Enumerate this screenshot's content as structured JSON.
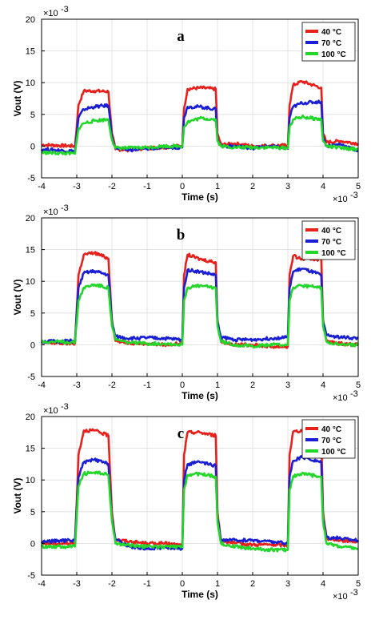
{
  "chart_data": [
    {
      "type": "line",
      "panel_label": "a",
      "xlabel": "Time (s)",
      "ylabel": "Vout (V)",
      "xlim": [
        -4,
        5
      ],
      "ylim": [
        -5,
        20
      ],
      "x_ticks": [
        "-4",
        "-3",
        "-2",
        "-1",
        "0",
        "1",
        "2",
        "3",
        "4",
        "5"
      ],
      "y_ticks": [
        "-5",
        "0",
        "5",
        "10",
        "15",
        "20"
      ],
      "x_multiplier": "×10",
      "x_multiplier_exp": "-3",
      "y_multiplier": "×10",
      "y_multiplier_exp": "-3",
      "grid": true,
      "legend_position": "top-right",
      "series": [
        {
          "name": "40 °C",
          "color": "#e8201c",
          "x": [
            -4,
            -3.05,
            -2.95,
            -2.8,
            -2.5,
            -2.1,
            -2.0,
            -1.9,
            -1.5,
            -1,
            -0.5,
            0,
            0.05,
            0.15,
            0.5,
            0.95,
            1.0,
            1.1,
            1.5,
            2,
            2.5,
            3.0,
            3.05,
            3.15,
            3.4,
            3.95,
            4.0,
            4.1,
            4.5,
            5
          ],
          "values": [
            0.2,
            0.0,
            6.5,
            8.7,
            8.7,
            8.6,
            2.0,
            -0.5,
            -0.6,
            -0.3,
            -0.2,
            0.1,
            6.0,
            9.0,
            9.2,
            9.0,
            2.0,
            0.2,
            0.4,
            0.0,
            0.1,
            0.1,
            6.5,
            9.6,
            10.2,
            9.2,
            2.0,
            0.6,
            0.8,
            0.4
          ]
        },
        {
          "name": "70 °C",
          "color": "#1a1fd6",
          "x": [
            -4,
            -3.05,
            -2.95,
            -2.8,
            -2.5,
            -2.1,
            -2.0,
            -1.9,
            -1.5,
            -1,
            -0.5,
            0,
            0.05,
            0.15,
            0.5,
            0.95,
            1.0,
            1.1,
            1.5,
            2,
            2.5,
            3.0,
            3.05,
            3.15,
            3.4,
            3.95,
            4.0,
            4.1,
            4.5,
            5
          ],
          "values": [
            -0.5,
            -0.8,
            4.5,
            5.8,
            6.2,
            6.4,
            1.5,
            -0.3,
            -0.6,
            -0.4,
            -0.2,
            -0.2,
            4.5,
            6.2,
            6.2,
            5.8,
            1.2,
            0.0,
            0.0,
            -0.3,
            0.0,
            -0.4,
            4.5,
            6.2,
            6.8,
            7.0,
            1.5,
            0.0,
            0.3,
            -0.8
          ]
        },
        {
          "name": "100 °C",
          "color": "#22d62a",
          "x": [
            -4,
            -3.05,
            -2.95,
            -2.8,
            -2.5,
            -2.1,
            -2.0,
            -1.9,
            -1.5,
            -1,
            -0.5,
            0,
            0.05,
            0.15,
            0.5,
            0.95,
            1.0,
            1.1,
            1.5,
            2,
            2.5,
            3.0,
            3.05,
            3.15,
            3.4,
            3.95,
            4.0,
            4.1,
            4.5,
            5
          ],
          "values": [
            -1.0,
            -1.2,
            2.8,
            3.6,
            4.0,
            4.2,
            1.0,
            -0.3,
            -0.3,
            -0.2,
            0.0,
            0.0,
            3.0,
            3.8,
            4.4,
            4.2,
            0.8,
            0.0,
            -0.2,
            -0.2,
            -0.2,
            -0.3,
            3.0,
            4.2,
            4.6,
            4.2,
            0.8,
            0.0,
            -0.3,
            -0.5
          ]
        }
      ]
    },
    {
      "type": "line",
      "panel_label": "b",
      "xlabel": "Time (s)",
      "ylabel": "Vout (V)",
      "xlim": [
        -4,
        5
      ],
      "ylim": [
        -5,
        20
      ],
      "x_ticks": [
        "-4",
        "-3",
        "-2",
        "-1",
        "0",
        "1",
        "2",
        "3",
        "4",
        "5"
      ],
      "y_ticks": [
        "-5",
        "0",
        "5",
        "10",
        "15",
        "20"
      ],
      "x_multiplier": "×10",
      "x_multiplier_exp": "-3",
      "y_multiplier": "×10",
      "y_multiplier_exp": "-3",
      "grid": true,
      "legend_position": "top-right",
      "series": [
        {
          "name": "40 °C",
          "color": "#e8201c",
          "x": [
            -4,
            -3.05,
            -2.95,
            -2.8,
            -2.5,
            -2.1,
            -2.0,
            -1.9,
            -1.5,
            -1,
            -0.5,
            0,
            0.05,
            0.15,
            0.5,
            0.95,
            1.0,
            1.1,
            1.5,
            2,
            2.5,
            3.0,
            3.05,
            3.15,
            3.4,
            3.95,
            4.0,
            4.1,
            4.5,
            5
          ],
          "values": [
            0.3,
            0.2,
            11.0,
            14.2,
            14.5,
            13.6,
            4.0,
            0.6,
            0.3,
            0.2,
            0.0,
            0.2,
            11.0,
            14.2,
            13.5,
            13.0,
            4.0,
            0.5,
            0.0,
            0.0,
            -0.3,
            -0.3,
            11.0,
            14.0,
            13.5,
            13.5,
            4.0,
            0.5,
            0.2,
            0.0
          ]
        },
        {
          "name": "70 °C",
          "color": "#1a1fd6",
          "x": [
            -4,
            -3.05,
            -2.95,
            -2.8,
            -2.5,
            -2.1,
            -2.0,
            -1.9,
            -1.5,
            -1,
            -0.5,
            0,
            0.05,
            0.15,
            0.5,
            0.95,
            1.0,
            1.1,
            1.5,
            2,
            2.5,
            3.0,
            3.05,
            3.15,
            3.4,
            3.95,
            4.0,
            4.1,
            4.5,
            5
          ],
          "values": [
            0.5,
            0.6,
            9.0,
            11.3,
            11.6,
            11.0,
            3.5,
            1.3,
            1.0,
            1.1,
            1.0,
            0.8,
            9.0,
            11.8,
            11.5,
            11.0,
            3.5,
            1.2,
            0.8,
            0.8,
            1.0,
            1.2,
            9.0,
            11.5,
            12.0,
            11.0,
            3.5,
            1.5,
            1.2,
            1.0
          ]
        },
        {
          "name": "100 °C",
          "color": "#22d62a",
          "x": [
            -4,
            -3.05,
            -2.95,
            -2.8,
            -2.5,
            -2.1,
            -2.0,
            -1.9,
            -1.5,
            -1,
            -0.5,
            0,
            0.05,
            0.15,
            0.5,
            0.95,
            1.0,
            1.1,
            1.5,
            2,
            2.5,
            3.0,
            3.05,
            3.15,
            3.4,
            3.95,
            4.0,
            4.1,
            4.5,
            5
          ],
          "values": [
            0.5,
            0.4,
            7.0,
            9.0,
            9.5,
            9.0,
            3.0,
            0.8,
            0.3,
            0.2,
            0.2,
            0.0,
            7.0,
            9.0,
            9.3,
            9.0,
            3.0,
            0.5,
            0.0,
            -0.2,
            0.0,
            0.0,
            7.0,
            9.0,
            9.3,
            9.0,
            3.0,
            0.5,
            0.0,
            0.0
          ]
        }
      ]
    },
    {
      "type": "line",
      "panel_label": "c",
      "xlabel": "Time (s)",
      "ylabel": "Vout (V)",
      "xlim": [
        -4,
        5
      ],
      "ylim": [
        -5,
        20
      ],
      "x_ticks": [
        "-4",
        "-3",
        "-2",
        "-1",
        "0",
        "1",
        "2",
        "3",
        "4",
        "5"
      ],
      "y_ticks": [
        "-5",
        "0",
        "5",
        "10",
        "15",
        "20"
      ],
      "x_multiplier": "×10",
      "x_multiplier_exp": "-3",
      "y_multiplier": "×10",
      "y_multiplier_exp": "-3",
      "grid": true,
      "legend_position": "top-right",
      "series": [
        {
          "name": "40 °C",
          "color": "#e8201c",
          "x": [
            -4,
            -3.05,
            -2.95,
            -2.8,
            -2.5,
            -2.1,
            -2.0,
            -1.9,
            -1.5,
            -1,
            -0.5,
            0,
            0.05,
            0.15,
            0.5,
            0.95,
            1.0,
            1.1,
            1.5,
            2,
            2.5,
            3.0,
            3.05,
            3.15,
            3.4,
            3.95,
            4.0,
            4.1,
            4.5,
            5
          ],
          "values": [
            0.0,
            0.0,
            14.0,
            17.8,
            17.8,
            17.0,
            5.0,
            0.6,
            0.3,
            0.0,
            0.0,
            -0.3,
            14.0,
            17.5,
            17.5,
            17.0,
            5.0,
            0.5,
            0.0,
            -0.2,
            -0.2,
            -0.3,
            14.0,
            17.6,
            17.8,
            17.0,
            5.0,
            0.8,
            0.5,
            0.3
          ]
        },
        {
          "name": "70 °C",
          "color": "#1a1fd6",
          "x": [
            -4,
            -3.05,
            -2.95,
            -2.8,
            -2.5,
            -2.1,
            -2.0,
            -1.9,
            -1.5,
            -1,
            -0.5,
            0,
            0.05,
            0.15,
            0.5,
            0.95,
            1.0,
            1.1,
            1.5,
            2,
            2.5,
            3.0,
            3.05,
            3.15,
            3.4,
            3.95,
            4.0,
            4.1,
            4.5,
            5
          ],
          "values": [
            0.3,
            0.5,
            10.5,
            12.8,
            13.2,
            12.5,
            4.0,
            0.6,
            -0.5,
            -0.8,
            -0.6,
            -0.8,
            10.0,
            12.5,
            12.8,
            12.2,
            4.0,
            0.5,
            0.5,
            0.5,
            0.3,
            0.0,
            10.5,
            13.0,
            13.6,
            12.8,
            4.0,
            1.0,
            0.8,
            0.5
          ]
        },
        {
          "name": "100 °C",
          "color": "#22d62a",
          "x": [
            -4,
            -3.05,
            -2.95,
            -2.8,
            -2.5,
            -2.1,
            -2.0,
            -1.9,
            -1.5,
            -1,
            -0.5,
            0,
            0.05,
            0.15,
            0.5,
            0.95,
            1.0,
            1.1,
            1.5,
            2,
            2.5,
            3.0,
            3.05,
            3.15,
            3.4,
            3.95,
            4.0,
            4.1,
            4.5,
            5
          ],
          "values": [
            -0.5,
            -0.5,
            9.0,
            11.0,
            11.2,
            10.8,
            3.5,
            0.0,
            -0.3,
            -0.5,
            -0.5,
            -0.6,
            8.5,
            10.8,
            11.0,
            10.5,
            3.5,
            0.0,
            -0.5,
            -0.8,
            -1.0,
            -1.0,
            8.5,
            10.6,
            11.0,
            10.5,
            3.5,
            0.0,
            -0.5,
            -0.8
          ]
        }
      ]
    }
  ]
}
